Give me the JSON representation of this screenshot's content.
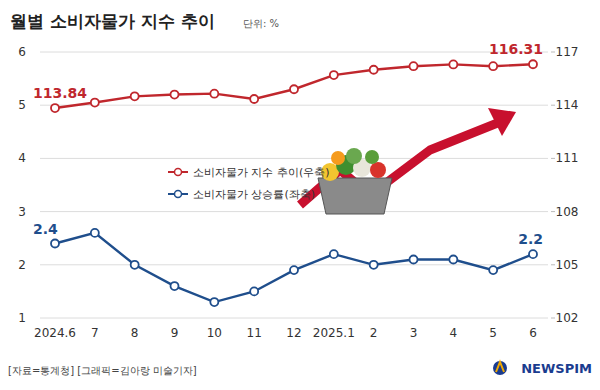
{
  "chart_data": {
    "type": "line",
    "title": "월별 소비자물가 지수 추이",
    "subtitle": "단위: %",
    "categories": [
      "2024.6",
      "7",
      "8",
      "9",
      "10",
      "11",
      "12",
      "2025.1",
      "2",
      "3",
      "4",
      "5",
      "6"
    ],
    "series": [
      {
        "name": "소비자물가 지수 추이(우축)",
        "color": "#c0272d",
        "axis": "y2",
        "marker": "circle",
        "values": [
          113.84,
          114.15,
          114.5,
          114.6,
          114.65,
          114.35,
          114.9,
          115.7,
          116.0,
          116.2,
          116.3,
          116.2,
          116.31
        ]
      },
      {
        "name": "소비자물가 상승률(좌축)",
        "color": "#1f4e8c",
        "marker": "circle",
        "values": [
          2.4,
          2.6,
          2.0,
          1.6,
          1.3,
          1.5,
          1.9,
          2.2,
          2.0,
          2.1,
          2.1,
          1.9,
          2.2
        ]
      }
    ],
    "ylim": [
      1,
      6
    ],
    "yticks": [
      1,
      2,
      3,
      4,
      5,
      6
    ],
    "y2lim": [
      102,
      117
    ],
    "y2ticks": [
      102,
      105,
      108,
      111,
      114,
      117
    ],
    "grid": true,
    "legend": "center",
    "annotations": [
      {
        "text": "113.84",
        "x": "2024.6",
        "y": 113.84,
        "axis": "y2"
      },
      {
        "text": "116.31",
        "x": "6",
        "y": 116.31,
        "axis": "y2"
      },
      {
        "text": "2.4",
        "x": "2024.6",
        "y": 2.4,
        "axis": "y"
      },
      {
        "text": "2.2",
        "x": "6",
        "y": 2.2,
        "axis": "y"
      }
    ],
    "source": "[자료=통계청] [그래픽=김아랑 미술기자]",
    "logo": "NEWSPIM"
  }
}
